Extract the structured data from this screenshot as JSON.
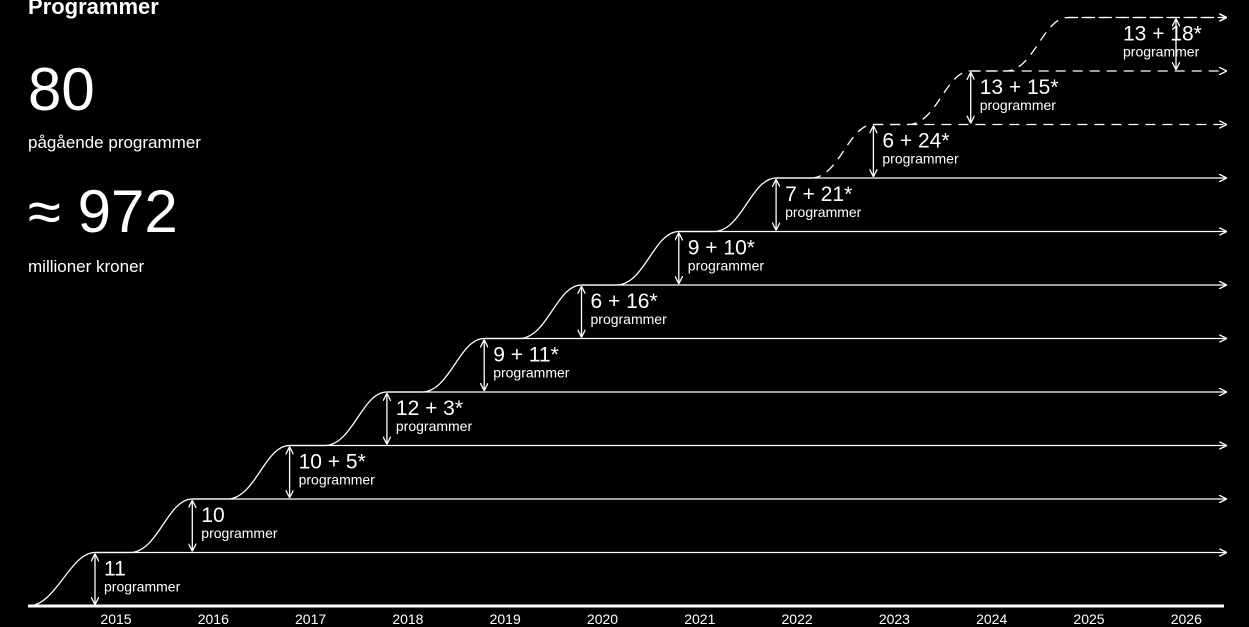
{
  "title": "Programmer",
  "kpis": [
    {
      "value": "80",
      "label": "pågående programmer"
    },
    {
      "value": "≈ 972",
      "label": "millioner kroner"
    }
  ],
  "chart_data": {
    "type": "line",
    "x_ticks": [
      "2015",
      "2016",
      "2017",
      "2018",
      "2019",
      "2020",
      "2021",
      "2022",
      "2023",
      "2024",
      "2025",
      "2026"
    ],
    "steps": [
      {
        "year": 2015,
        "label": "11",
        "unit": "programmer",
        "dashed": false
      },
      {
        "year": 2016,
        "label": "10",
        "unit": "programmer",
        "dashed": false
      },
      {
        "year": 2017,
        "label": "10 + 5*",
        "unit": "programmer",
        "dashed": false
      },
      {
        "year": 2018,
        "label": "12 + 3*",
        "unit": "programmer",
        "dashed": false
      },
      {
        "year": 2019,
        "label": "9 + 11*",
        "unit": "programmer",
        "dashed": false
      },
      {
        "year": 2020,
        "label": "6 + 16*",
        "unit": "programmer",
        "dashed": false
      },
      {
        "year": 2021,
        "label": "9 + 10*",
        "unit": "programmer",
        "dashed": false
      },
      {
        "year": 2022,
        "label": "7 + 21*",
        "unit": "programmer",
        "dashed": false
      },
      {
        "year": 2023,
        "label": "6 + 24*",
        "unit": "programmer",
        "dashed": true
      },
      {
        "year": 2024,
        "label": "13 + 15*",
        "unit": "programmer",
        "dashed": true
      },
      {
        "year": 2025,
        "label": "13 + 18*",
        "unit": "programmer",
        "dashed": true
      }
    ]
  }
}
